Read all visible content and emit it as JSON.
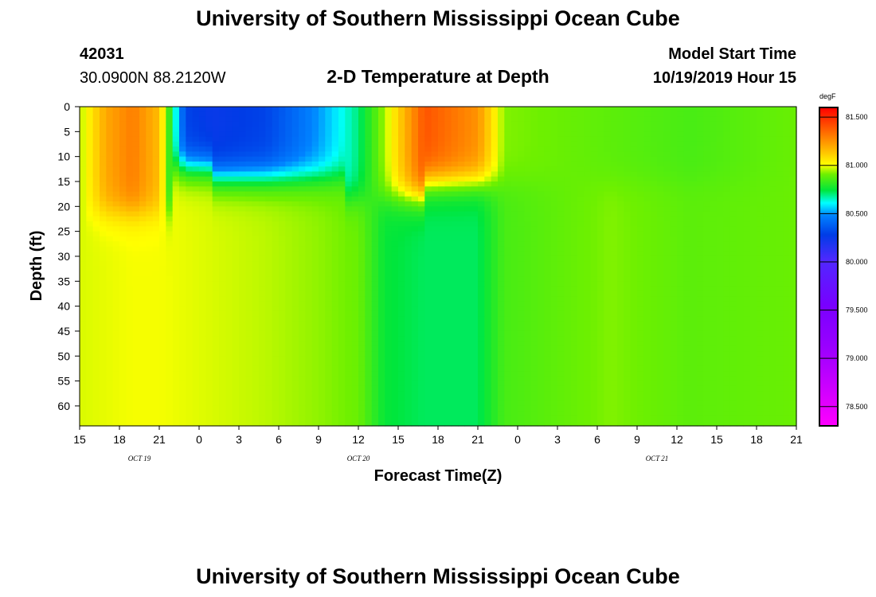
{
  "header": {
    "title_top": "University of Southern Mississippi Ocean Cube",
    "station_id": "42031",
    "location": "30.0900N 88.2120W",
    "plot_title": "2-D Temperature at Depth",
    "model_label": "Model Start Time",
    "model_time": "10/19/2019 Hour 15",
    "title_bottom": "University of Southern Mississippi Ocean Cube"
  },
  "chart_data": {
    "type": "heatmap",
    "title": "2-D Temperature at Depth",
    "xlabel": "Forecast Time(Z)",
    "ylabel": "Depth (ft)",
    "unit": "degF",
    "x_hours_range": [
      0,
      54
    ],
    "x_ticks": [
      "15",
      "18",
      "21",
      "0",
      "3",
      "6",
      "9",
      "12",
      "15",
      "18",
      "21",
      "0",
      "3",
      "6",
      "9",
      "12",
      "15",
      "18",
      "21"
    ],
    "date_labels": [
      {
        "text": "OCT 19",
        "hour": 4.5
      },
      {
        "text": "OCT 20",
        "hour": 21
      },
      {
        "text": "OCT 21",
        "hour": 43.5
      }
    ],
    "y_ticks": [
      0,
      5,
      10,
      15,
      20,
      25,
      30,
      35,
      40,
      45,
      50,
      55,
      60
    ],
    "ylim": [
      0,
      64
    ],
    "colorbar": {
      "label": "degF",
      "range": [
        78.3,
        81.6
      ],
      "ticks": [
        "81.500",
        "81.000",
        "80.500",
        "80.000",
        "79.500",
        "79.000",
        "78.500"
      ],
      "tick_values": [
        81.5,
        81.0,
        80.5,
        80.0,
        79.5,
        79.0,
        78.5
      ]
    },
    "temperature_profile_by_hour": [
      {
        "hour": 0,
        "surface": 80.95,
        "deep": 80.98
      },
      {
        "hour": 2,
        "surface": 81.2,
        "deep": 80.99
      },
      {
        "hour": 4,
        "surface": 81.3,
        "deep": 81.0
      },
      {
        "hour": 6,
        "surface": 81.15,
        "deep": 81.0
      },
      {
        "hour": 8,
        "surface": 80.3,
        "deep": 80.99
      },
      {
        "hour": 10,
        "surface": 80.25,
        "deep": 80.98
      },
      {
        "hour": 14,
        "surface": 80.3,
        "deep": 80.96
      },
      {
        "hour": 18,
        "surface": 80.5,
        "deep": 80.93
      },
      {
        "hour": 21,
        "surface": 80.7,
        "deep": 80.9
      },
      {
        "hour": 23,
        "surface": 80.95,
        "deep": 80.75
      },
      {
        "hour": 26,
        "surface": 81.4,
        "deep": 80.72
      },
      {
        "hour": 30,
        "surface": 81.25,
        "deep": 80.72
      },
      {
        "hour": 32,
        "surface": 80.92,
        "deep": 80.85
      },
      {
        "hour": 40,
        "surface": 80.88,
        "deep": 80.92
      },
      {
        "hour": 46,
        "surface": 80.85,
        "deep": 80.88
      },
      {
        "hour": 54,
        "surface": 80.9,
        "deep": 80.9
      }
    ]
  }
}
